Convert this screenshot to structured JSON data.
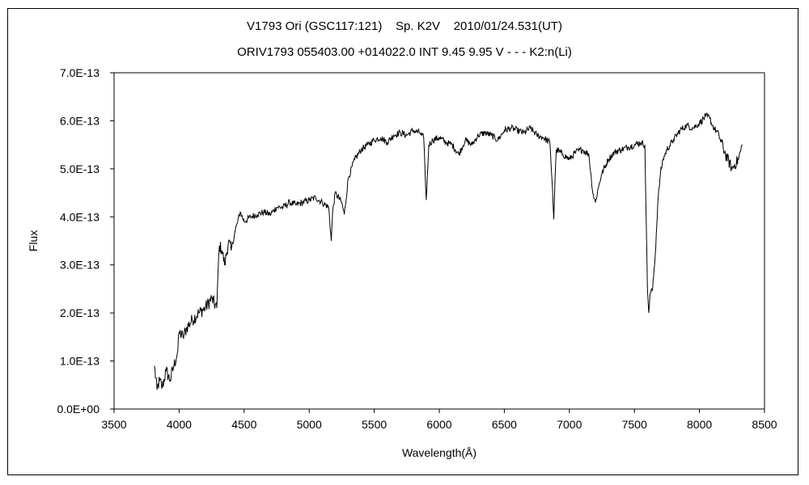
{
  "chart_data": {
    "type": "line",
    "title": "V1793 Ori (GSC117:121)    Sp. K2V    2010/01/24.531(UT)",
    "subtitle": "ORIV1793 055403.00 +014022.0 INT 9.45 9.95 V - - - K2:n(Li)",
    "xlabel": "Wavelength(Å)",
    "ylabel": "Flux",
    "xlim": [
      3500,
      8500
    ],
    "ylim": [
      0,
      7e-13
    ],
    "xticks": [
      3500,
      4000,
      4500,
      5000,
      5500,
      6000,
      6500,
      7000,
      7500,
      8000,
      8500
    ],
    "xtick_labels": [
      "3500",
      "4000",
      "4500",
      "5000",
      "5500",
      "6000",
      "6500",
      "7000",
      "7500",
      "8000",
      "8500"
    ],
    "yticks": [
      0,
      1e-13,
      2e-13,
      3e-13,
      4e-13,
      5e-13,
      6e-13,
      7e-13
    ],
    "ytick_labels": [
      "0.0E+00",
      "1.0E-13",
      "2.0E-13",
      "3.0E-13",
      "4.0E-13",
      "5.0E-13",
      "6.0E-13",
      "7.0E-13"
    ],
    "grid": false,
    "legend": "none",
    "line_color": "#000000",
    "series": [
      {
        "x": [
          3810,
          3830,
          3850,
          3870,
          3900,
          3930,
          3960,
          3990,
          4000,
          4030,
          4060,
          4100,
          4150,
          4200,
          4250,
          4290,
          4300,
          4310,
          4330,
          4350,
          4380,
          4400,
          4430,
          4450,
          4470,
          4500,
          4550,
          4600,
          4650,
          4700,
          4750,
          4800,
          4850,
          4900,
          4950,
          5000,
          5050,
          5100,
          5150,
          5170,
          5180,
          5200,
          5250,
          5270,
          5300,
          5350,
          5400,
          5450,
          5500,
          5550,
          5600,
          5650,
          5700,
          5750,
          5800,
          5850,
          5880,
          5890,
          5900,
          5920,
          5950,
          6000,
          6050,
          6100,
          6150,
          6200,
          6250,
          6300,
          6350,
          6400,
          6450,
          6500,
          6550,
          6600,
          6650,
          6700,
          6750,
          6800,
          6850,
          6870,
          6880,
          6890,
          6900,
          6950,
          7000,
          7050,
          7100,
          7150,
          7180,
          7200,
          7230,
          7250,
          7300,
          7350,
          7400,
          7450,
          7500,
          7550,
          7580,
          7590,
          7600,
          7610,
          7620,
          7640,
          7660,
          7680,
          7700,
          7720,
          7750,
          7800,
          7850,
          7900,
          7950,
          8000,
          8050,
          8080,
          8100,
          8150,
          8200,
          8250,
          8300,
          8330
        ],
        "y": [
          9e-14,
          4e-14,
          6e-14,
          4.5e-14,
          8e-14,
          6e-14,
          9e-14,
          1.2e-13,
          1.6e-13,
          1.5e-13,
          1.7e-13,
          1.85e-13,
          2e-13,
          2.1e-13,
          2.3e-13,
          2.1e-13,
          2.9e-13,
          3.4e-13,
          3.3e-13,
          3e-13,
          3.5e-13,
          3.3e-13,
          3.7e-13,
          3.9e-13,
          4.1e-13,
          3.9e-13,
          4e-13,
          4.05e-13,
          4.1e-13,
          4.05e-13,
          4.2e-13,
          4.2e-13,
          4.3e-13,
          4.25e-13,
          4.3e-13,
          4.35e-13,
          4.4e-13,
          4.3e-13,
          4.2e-13,
          3.5e-13,
          4.1e-13,
          4.5e-13,
          4.3e-13,
          4.05e-13,
          4.8e-13,
          5.2e-13,
          5.4e-13,
          5.5e-13,
          5.6e-13,
          5.65e-13,
          5.55e-13,
          5.7e-13,
          5.75e-13,
          5.7e-13,
          5.8e-13,
          5.75e-13,
          5.65e-13,
          5e-13,
          4.35e-13,
          5.5e-13,
          5.6e-13,
          5.65e-13,
          5.55e-13,
          5.5e-13,
          5.3e-13,
          5.6e-13,
          5.5e-13,
          5.7e-13,
          5.75e-13,
          5.7e-13,
          5.6e-13,
          5.8e-13,
          5.85e-13,
          5.8e-13,
          5.75e-13,
          5.85e-13,
          5.7e-13,
          5.65e-13,
          5.55e-13,
          4.6e-13,
          3.95e-13,
          4.8e-13,
          5.4e-13,
          5.3e-13,
          5.2e-13,
          5.35e-13,
          5.4e-13,
          5.3e-13,
          4.5e-13,
          4.3e-13,
          4.7e-13,
          4.9e-13,
          5.2e-13,
          5.35e-13,
          5.4e-13,
          5.45e-13,
          5.5e-13,
          5.55e-13,
          5.5e-13,
          4e-13,
          2.5e-13,
          2e-13,
          2.4e-13,
          2.5e-13,
          3.2e-13,
          4.3e-13,
          4.9e-13,
          5.2e-13,
          5.4e-13,
          5.6e-13,
          5.8e-13,
          5.9e-13,
          5.85e-13,
          5.95e-13,
          6.1e-13,
          6.05e-13,
          5.9e-13,
          5.7e-13,
          5.3e-13,
          5e-13,
          5.2e-13,
          5.5e-13
        ]
      }
    ]
  }
}
